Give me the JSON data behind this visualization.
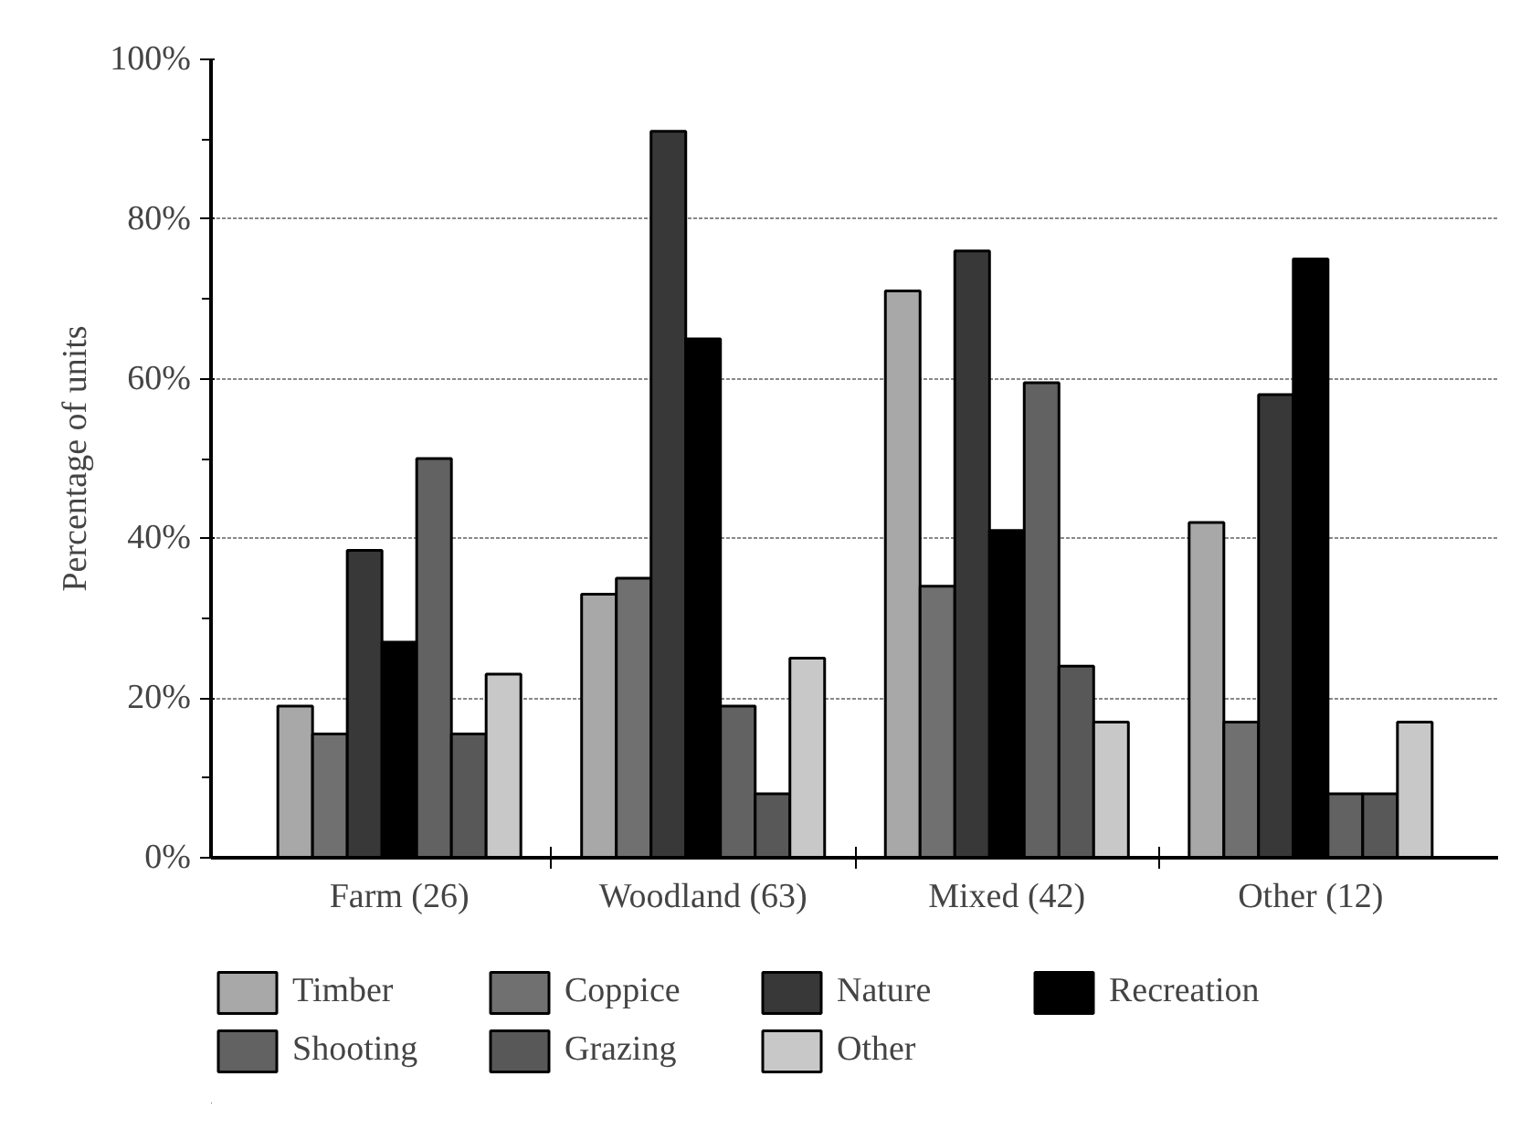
{
  "chart_data": {
    "type": "bar",
    "ylabel": "Percentage of units",
    "categories": [
      "Farm (26)",
      "Woodland (63)",
      "Mixed (42)",
      "Other (12)"
    ],
    "series": [
      {
        "name": "Timber",
        "color": "#a8a8a8",
        "values": [
          19,
          33,
          71,
          42
        ]
      },
      {
        "name": "Coppice",
        "color": "#707070",
        "values": [
          15.5,
          35,
          34,
          17
        ]
      },
      {
        "name": "Nature",
        "color": "#383838",
        "values": [
          38.5,
          91,
          76,
          58
        ]
      },
      {
        "name": "Recreation",
        "color": "#000000",
        "values": [
          27,
          65,
          41,
          75
        ]
      },
      {
        "name": "Shooting",
        "color": "#626262",
        "values": [
          50,
          19,
          59.5,
          8
        ]
      },
      {
        "name": "Grazing",
        "color": "#585858",
        "values": [
          15.5,
          8,
          24,
          8
        ]
      },
      {
        "name": "Other",
        "color": "#c8c8c8",
        "values": [
          23,
          25,
          17,
          17
        ]
      }
    ],
    "ylim": [
      0,
      100
    ],
    "yticks": [
      {
        "value": 0,
        "label": "0%"
      },
      {
        "value": 10,
        "label": null
      },
      {
        "value": 20,
        "label": "20%"
      },
      {
        "value": 30,
        "label": null
      },
      {
        "value": 40,
        "label": "40%"
      },
      {
        "value": 50,
        "label": null
      },
      {
        "value": 60,
        "label": "60%"
      },
      {
        "value": 70,
        "label": null
      },
      {
        "value": 80,
        "label": "80%"
      },
      {
        "value": 90,
        "label": null
      },
      {
        "value": 100,
        "label": "100%"
      }
    ],
    "grid": "y",
    "legend": "bottom"
  }
}
